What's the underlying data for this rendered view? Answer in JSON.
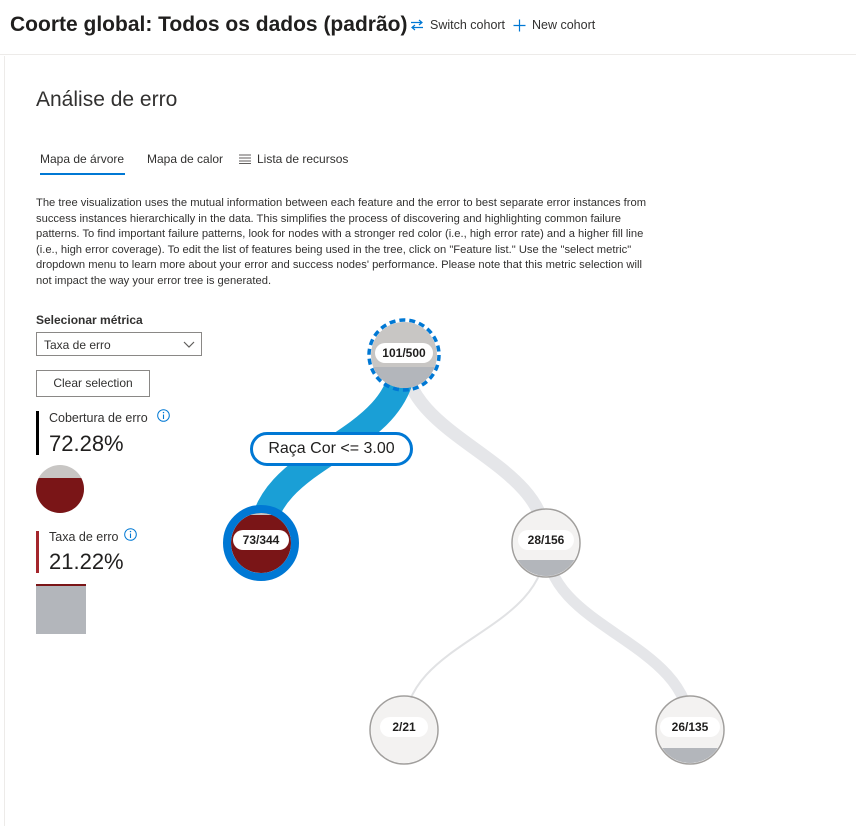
{
  "header": {
    "cohort_title": "Coorte global: Todos os dados (padrão)",
    "switch_cohort": "Switch cohort",
    "new_cohort": "New cohort"
  },
  "page": {
    "title": "Análise de erro",
    "tabs": [
      {
        "label": "Mapa de árvore",
        "active": true
      },
      {
        "label": "Mapa de calor",
        "active": false
      },
      {
        "label": "Lista de recursos",
        "active": false
      }
    ],
    "description": "The tree visualization uses the mutual information between each feature and the error to best separate error instances from success instances hierarchically in the data. This simplifies the process of discovering and highlighting common failure patterns. To find important failure patterns, look for nodes with a stronger red color (i.e., high error rate) and a higher fill line (i.e., high error coverage). To edit the list of features being used in the tree, click on \"Feature list.\" Use the \"select metric\" dropdown menu to learn more about your error and success nodes' performance. Please note that this metric selection will not impact the way your error tree is generated."
  },
  "controls": {
    "metric_label": "Selecionar métrica",
    "metric_selected": "Taxa de erro",
    "clear_selection": "Clear selection"
  },
  "stats": {
    "coverage": {
      "title": "Cobertura de erro",
      "value": "72.28%",
      "bar_color": "#000000"
    },
    "error_rate": {
      "title": "Taxa de erro",
      "value": "21.22%",
      "bar_color": "#a4262c"
    }
  },
  "tree": {
    "split_label": "Raça Cor <= 3.00",
    "nodes": [
      {
        "id": "root",
        "label": "101/500",
        "selected": false,
        "on_path": true
      },
      {
        "id": "left",
        "label": "73/344",
        "selected": true
      },
      {
        "id": "right",
        "label": "28/156",
        "selected": false
      },
      {
        "id": "right-left",
        "label": "2/21",
        "selected": false
      },
      {
        "id": "right-right",
        "label": "26/135",
        "selected": false
      }
    ]
  },
  "colors": {
    "accent": "#0078d4",
    "path": "#1a9fd6",
    "error_fill": "#7a1517",
    "node_gray": "#b3b6bb",
    "node_bg": "#f3f2f1"
  }
}
